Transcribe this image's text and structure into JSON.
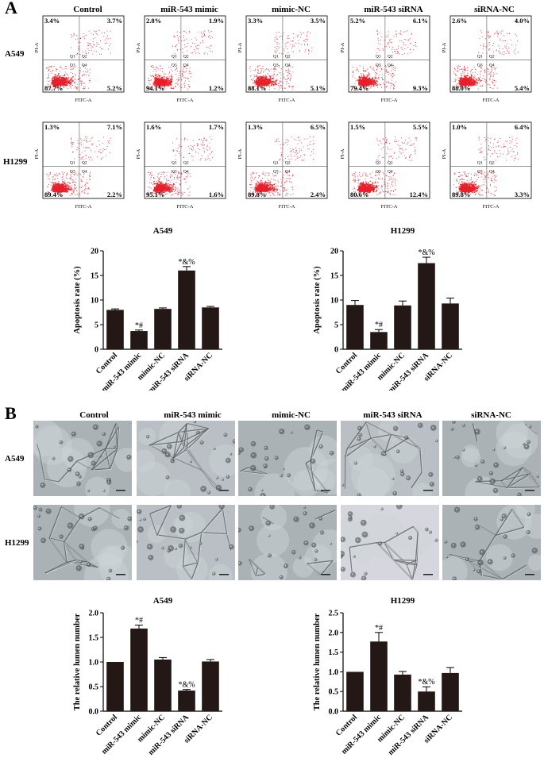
{
  "panel_a": {
    "letter": "A",
    "columns": [
      "Control",
      "miR-543 mimic",
      "mimic-NC",
      "miR-543 siRNA",
      "siRNA-NC"
    ],
    "rows": [
      {
        "label": "A549",
        "plots": [
          {
            "q1": "3.4%",
            "q2": "3.7%",
            "q3": "87.7%",
            "q4": "5.2%",
            "q_labels": [
              "Q1",
              "Q2",
              "Q3",
              "Q4"
            ],
            "y_axis": "PI-A",
            "x_axis": "FITC-A"
          },
          {
            "q1": "2.8%",
            "q2": "1.9%",
            "q3": "94.1%",
            "q4": "1.2%",
            "q_labels": [
              "Q1",
              "Q2",
              "Q3",
              "Q4"
            ],
            "y_axis": "PI-A",
            "x_axis": "FITC-A"
          },
          {
            "q1": "3.3%",
            "q2": "3.5%",
            "q3": "88.1%",
            "q4": "5.1%",
            "q_labels": [
              "Q1",
              "Q2",
              "Q3",
              "Q4"
            ],
            "y_axis": "PI-A",
            "x_axis": "FITC-A"
          },
          {
            "q1": "5.2%",
            "q2": "6.1%",
            "q3": "79.4%",
            "q4": "9.3%",
            "q_labels": [
              "Q1",
              "Q2",
              "Q3",
              "Q4"
            ],
            "y_axis": "PI-A",
            "x_axis": "FITC-A"
          },
          {
            "q1": "2.6%",
            "q2": "4.0%",
            "q3": "88.0%",
            "q4": "5.4%",
            "q_labels": [
              "Q1",
              "Q2",
              "Q3",
              "Q4"
            ],
            "y_axis": "PI-A",
            "x_axis": "FITC-A"
          }
        ]
      },
      {
        "label": "H1299",
        "plots": [
          {
            "q1": "1.3%",
            "q2": "7.1%",
            "q3": "89.4%",
            "q4": "2.2%",
            "q_labels": [
              "Q1",
              "Q2",
              "Q3",
              "Q4"
            ],
            "y_axis": "PI-A",
            "x_axis": "FITC-A"
          },
          {
            "q1": "1.6%",
            "q2": "1.7%",
            "q3": "95.1%",
            "q4": "1.6%",
            "q_labels": [
              "Q1",
              "Q2",
              "Q3",
              "Q4"
            ],
            "y_axis": "PI-A",
            "x_axis": "FITC-A"
          },
          {
            "q1": "1.3%",
            "q2": "6.5%",
            "q3": "89.8%",
            "q4": "2.4%",
            "q_labels": [
              "Q1",
              "Q2",
              "Q3",
              "Q4"
            ],
            "y_axis": "PI-A",
            "x_axis": "FITC-A"
          },
          {
            "q1": "1.5%",
            "q2": "5.5%",
            "q3": "80.6%",
            "q4": "12.4%",
            "q_labels": [
              "Q1",
              "Q2",
              "Q3",
              "Q4"
            ],
            "y_axis": "PI-A",
            "x_axis": "FITC-A"
          },
          {
            "q1": "1.0%",
            "q2": "6.4%",
            "q3": "89.8%",
            "q4": "3.3%",
            "q_labels": [
              "Q1",
              "Q2",
              "Q3",
              "Q4"
            ],
            "y_axis": "PI-A",
            "x_axis": "FITC-A"
          }
        ]
      }
    ],
    "dot_color": "#e8202a"
  },
  "panel_b": {
    "letter": "B",
    "columns": [
      "Control",
      "miR-543 mimic",
      "mimic-NC",
      "miR-543 siRNA",
      "siRNA-NC"
    ],
    "rows": [
      "A549",
      "H1299"
    ]
  },
  "chart_data": [
    {
      "type": "bar",
      "title": "A549",
      "ylabel": "Apoptosis rate (%)",
      "categories": [
        "Control",
        "miR-543 mimic",
        "mimic-NC",
        "miR-543 siRNA",
        "siRNA-NC"
      ],
      "values": [
        8.0,
        3.7,
        8.2,
        16.0,
        8.5
      ],
      "errors": [
        0.2,
        0.2,
        0.2,
        0.8,
        0.2
      ],
      "annotations": [
        "",
        "*#",
        "",
        "*&%",
        ""
      ],
      "ylim": [
        0,
        20
      ],
      "yticks": [
        0,
        5,
        10,
        15,
        20
      ],
      "bar_color": "#231815"
    },
    {
      "type": "bar",
      "title": "H1299",
      "ylabel": "Apoptosis rate (%)",
      "categories": [
        "Control",
        "miR-543 mimic",
        "mimic-NC",
        "miR-543 siRNA",
        "siRNA-NC"
      ],
      "values": [
        9.0,
        3.5,
        8.9,
        17.5,
        9.3
      ],
      "errors": [
        0.9,
        0.5,
        0.9,
        1.2,
        1.1
      ],
      "annotations": [
        "",
        "*#",
        "",
        "*&%",
        ""
      ],
      "ylim": [
        0,
        20
      ],
      "yticks": [
        0,
        5,
        10,
        15,
        20
      ],
      "bar_color": "#231815"
    },
    {
      "type": "bar",
      "title": "A549",
      "ylabel": "The relative lumen number",
      "categories": [
        "Control",
        "miR-543 mimic",
        "mimic-NC",
        "miR-543 siRNA",
        "siRNA-NC"
      ],
      "values": [
        1.0,
        1.68,
        1.05,
        0.42,
        1.01
      ],
      "errors": [
        0.0,
        0.07,
        0.04,
        0.02,
        0.04
      ],
      "annotations": [
        "",
        "*#",
        "",
        "*&%",
        ""
      ],
      "ylim": [
        0,
        2.0
      ],
      "yticks": [
        "0.0",
        "0.5",
        "1.0",
        "1.5",
        "2.0"
      ],
      "bar_color": "#231815"
    },
    {
      "type": "bar",
      "title": "H1299",
      "ylabel": "The relative lumen number",
      "categories": [
        "Control",
        "miR-543 mimic",
        "mimic-NC",
        "miR-543 siRNA",
        "siRNA-NC"
      ],
      "values": [
        1.0,
        1.77,
        0.93,
        0.5,
        0.97
      ],
      "errors": [
        0.0,
        0.23,
        0.08,
        0.12,
        0.14
      ],
      "annotations": [
        "",
        "*#",
        "",
        "*&%",
        ""
      ],
      "ylim": [
        0,
        2.5
      ],
      "yticks": [
        "0.0",
        "0.5",
        "1.0",
        "1.5",
        "2.0",
        "2.5"
      ],
      "bar_color": "#231815"
    }
  ]
}
